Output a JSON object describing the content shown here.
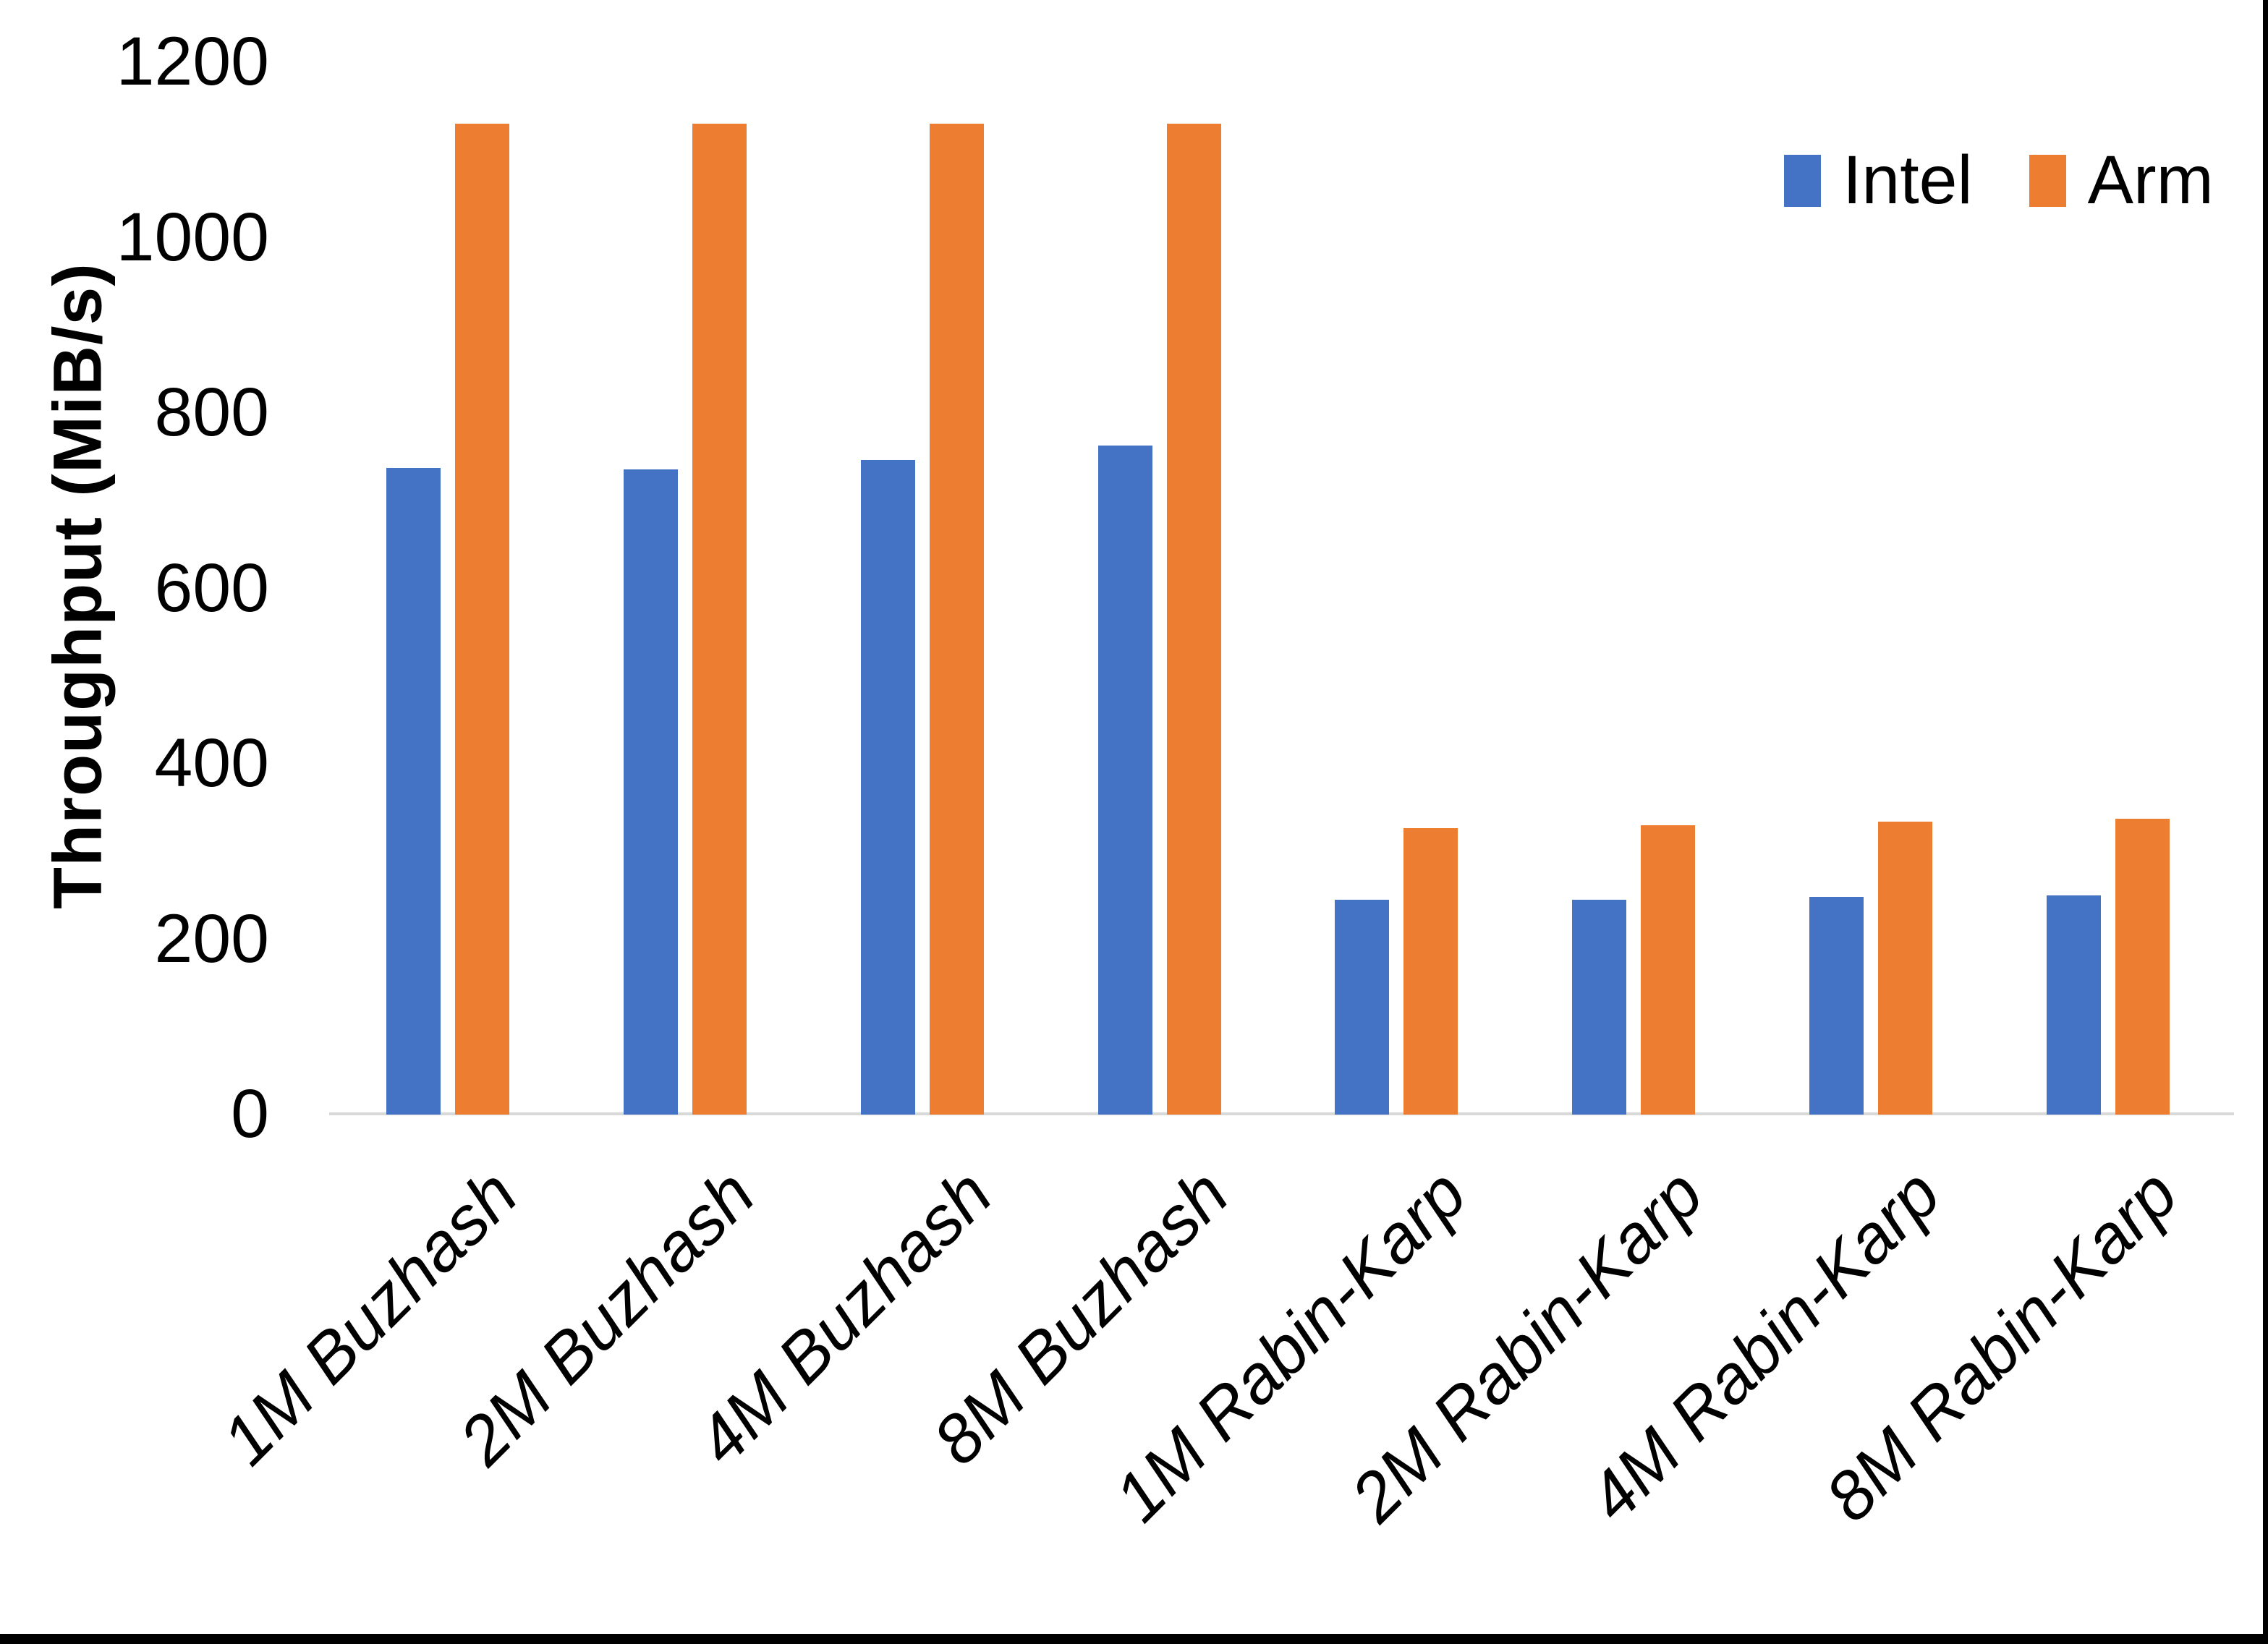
{
  "chart_data": {
    "type": "bar",
    "title": "",
    "xlabel": "",
    "ylabel": "Throughput (MiB/s)",
    "ylim": [
      0,
      1200
    ],
    "yticks": [
      0,
      200,
      400,
      600,
      800,
      1000,
      1200
    ],
    "grid": false,
    "legend_position": "top-right",
    "categories": [
      "1M Buzhash",
      "2M Buzhash",
      "4M Buzhash",
      "8M Buzhash",
      "1M Rabin-Karp",
      "2M Rabin-Karp",
      "4M Rabin-Karp",
      "8M Rabin-Karp"
    ],
    "series": [
      {
        "name": "Intel",
        "color": "#4472C4",
        "values": [
          737,
          736,
          746,
          763,
          245,
          245,
          248,
          250
        ]
      },
      {
        "name": "Arm",
        "color": "#ED7D31",
        "values": [
          1130,
          1130,
          1130,
          1130,
          327,
          330,
          334,
          337
        ]
      }
    ]
  },
  "axis_colors": {
    "baseline": "#d9d9d9",
    "text": "#000000"
  },
  "window": {
    "border_color": "#000000"
  }
}
